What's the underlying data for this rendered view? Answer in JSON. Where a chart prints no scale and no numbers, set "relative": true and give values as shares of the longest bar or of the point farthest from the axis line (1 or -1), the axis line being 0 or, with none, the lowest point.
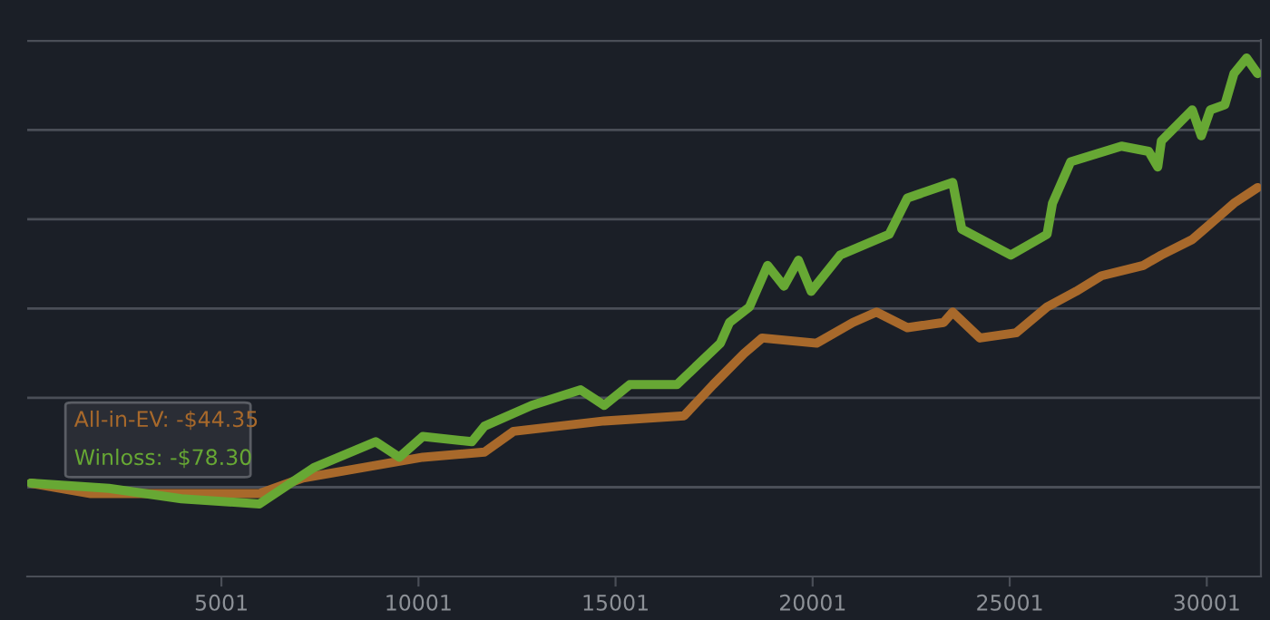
{
  "chart_data": {
    "type": "line",
    "relative": true,
    "grid": "y",
    "marker": "none",
    "line_style": "solid",
    "xlim": [
      74,
      31375
    ],
    "xticks": [
      5001,
      10001,
      15001,
      20001,
      25001,
      30001
    ],
    "series": [
      {
        "color": "#a8692b",
        "x": [
          166,
          1685,
          3987,
          5967,
          7072,
          8591,
          10111,
          11676,
          12413,
          14715,
          16741,
          17478,
          18261,
          18721,
          20102,
          21023,
          21621,
          22404,
          23325,
          23555,
          24245,
          25166,
          25949,
          26685,
          27330,
          28389,
          28849,
          29632,
          30092,
          30691,
          31289
        ],
        "values": [
          0.18,
          0.16,
          0.16,
          0.16,
          0.19,
          0.21,
          0.23,
          0.24,
          0.28,
          0.3,
          0.31,
          0.37,
          0.43,
          0.46,
          0.45,
          0.49,
          0.51,
          0.48,
          0.49,
          0.51,
          0.46,
          0.47,
          0.52,
          0.55,
          0.58,
          0.6,
          0.62,
          0.65,
          0.68,
          0.72,
          0.75
        ]
      },
      {
        "color": "#67a834",
        "x": [
          166,
          2145,
          3987,
          5967,
          7348,
          8913,
          9512,
          10111,
          11354,
          11676,
          12873,
          14116,
          14715,
          15360,
          16557,
          17662,
          17892,
          18399,
          18859,
          19273,
          19641,
          19964,
          20700,
          21943,
          22404,
          23555,
          23785,
          25028,
          25949,
          26087,
          26548,
          27837,
          28527,
          28757,
          28849,
          29632,
          29862,
          30092,
          30460,
          30691,
          31013,
          31289
        ],
        "values": [
          0.18,
          0.17,
          0.15,
          0.14,
          0.21,
          0.26,
          0.23,
          0.27,
          0.26,
          0.29,
          0.33,
          0.36,
          0.33,
          0.37,
          0.37,
          0.45,
          0.49,
          0.52,
          0.6,
          0.56,
          0.61,
          0.55,
          0.62,
          0.66,
          0.73,
          0.76,
          0.67,
          0.62,
          0.66,
          0.72,
          0.8,
          0.83,
          0.82,
          0.79,
          0.84,
          0.9,
          0.85,
          0.9,
          0.91,
          0.97,
          1.0,
          0.97
        ]
      }
    ],
    "annotations": [
      "All-in-EV: -$44.35",
      "Winloss: -$78.30"
    ]
  }
}
